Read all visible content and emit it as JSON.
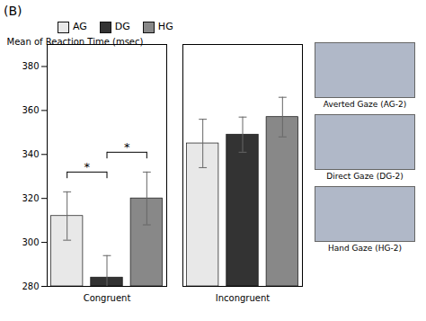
{
  "chart_data": {
    "type": "bar",
    "title": "(B)",
    "y_label": "Mean of Reaction Time (msec)",
    "categories": [
      "Congruent",
      "Incongruent"
    ],
    "series": [
      {
        "name": "AG",
        "color": "#e8e8e8",
        "values": [
          312,
          345
        ],
        "errors": [
          11,
          11
        ]
      },
      {
        "name": "DG",
        "color": "#333333",
        "values": [
          284,
          349
        ],
        "errors": [
          10,
          8
        ]
      },
      {
        "name": "HG",
        "color": "#888888",
        "values": [
          320,
          357
        ],
        "errors": [
          12,
          9
        ]
      }
    ],
    "ylim": [
      280,
      390
    ],
    "yticks": [
      280,
      300,
      320,
      340,
      360,
      380
    ],
    "grid": false,
    "legend": "top",
    "brackets": [
      {
        "category": "Congruent",
        "from": "AG",
        "to": "DG",
        "y": 332,
        "label": "*"
      },
      {
        "category": "Congruent",
        "from": "DG",
        "to": "HG",
        "y": 341,
        "label": "*"
      }
    ],
    "annotations": [
      "Averted Gaze (AG-2)",
      "Direct Gaze (DG-2)",
      "Hand Gaze (HG-2)"
    ]
  }
}
